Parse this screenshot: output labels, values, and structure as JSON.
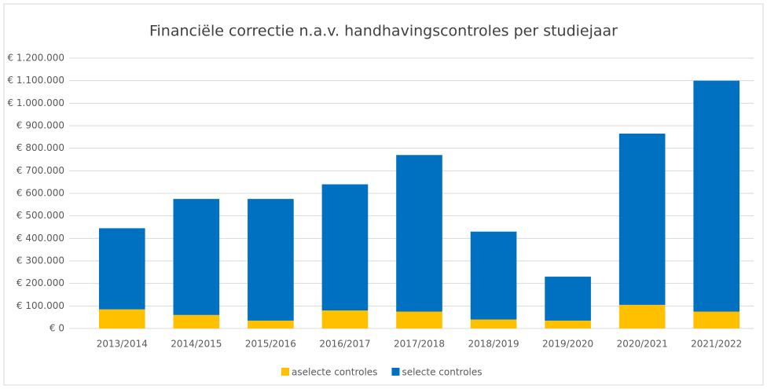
{
  "chart_data": {
    "type": "stacked_bar",
    "title": "Financiële correctie n.a.v. handhavingscontroles per studiejaar",
    "categories": [
      "2013/2014",
      "2014/2015",
      "2015/2016",
      "2016/2017",
      "2017/2018",
      "2018/2019",
      "2019/2020",
      "2020/2021",
      "2021/2022"
    ],
    "series": [
      {
        "name": "aselecte controles",
        "color": "#ffc000",
        "values": [
          85000,
          60000,
          35000,
          80000,
          75000,
          40000,
          35000,
          105000,
          75000
        ]
      },
      {
        "name": "selecte controles",
        "color": "#0070c0",
        "values": [
          360000,
          515000,
          540000,
          560000,
          695000,
          390000,
          195000,
          760000,
          1025000
        ]
      }
    ],
    "ylim": [
      0,
      1200000
    ],
    "yticks": [
      {
        "value": 0,
        "label": "€ 0"
      },
      {
        "value": 100000,
        "label": "€ 100.000"
      },
      {
        "value": 200000,
        "label": "€ 200.000"
      },
      {
        "value": 300000,
        "label": "€ 300.000"
      },
      {
        "value": 400000,
        "label": "€ 400.000"
      },
      {
        "value": 500000,
        "label": "€ 500.000"
      },
      {
        "value": 600000,
        "label": "€ 600.000"
      },
      {
        "value": 700000,
        "label": "€ 700.000"
      },
      {
        "value": 800000,
        "label": "€ 800.000"
      },
      {
        "value": 900000,
        "label": "€ 900.000"
      },
      {
        "value": 1000000,
        "label": "€ 1.000.000"
      },
      {
        "value": 1100000,
        "label": "€ 1.100.000"
      },
      {
        "value": 1200000,
        "label": "€ 1.200.000"
      }
    ],
    "grid": true,
    "legend": "bottom"
  }
}
